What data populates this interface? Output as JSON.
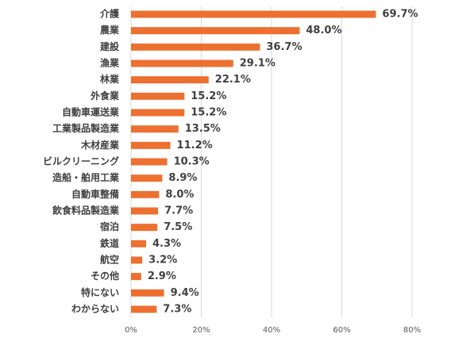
{
  "chart_data": {
    "type": "bar",
    "orientation": "horizontal",
    "categories": [
      "介護",
      "農業",
      "建設",
      "漁業",
      "林業",
      "外食業",
      "自動車運送業",
      "工業製品製造業",
      "木材産業",
      "ビルクリーニング",
      "造船・舶用工業",
      "自動車整備",
      "飲食料品製造業",
      "宿泊",
      "鉄道",
      "航空",
      "その他",
      "特にない",
      "わからない"
    ],
    "values": [
      69.7,
      48.0,
      36.7,
      29.1,
      22.1,
      15.2,
      15.2,
      13.5,
      11.2,
      10.3,
      8.9,
      8.0,
      7.7,
      7.5,
      4.3,
      3.2,
      2.9,
      9.4,
      7.3
    ],
    "value_labels": [
      "69.7%",
      "48.0%",
      "36.7%",
      "29.1%",
      "22.1%",
      "15.2%",
      "15.2%",
      "13.5%",
      "11.2%",
      "10.3%",
      "8.9%",
      "8.0%",
      "7.7%",
      "7.5%",
      "4.3%",
      "3.2%",
      "2.9%",
      "9.4%",
      "7.3%"
    ],
    "color": "#ed7031",
    "xlim": [
      0,
      80
    ],
    "xticks": [
      {
        "value": 0,
        "label": "0%"
      },
      {
        "value": 20,
        "label": "20%"
      },
      {
        "value": 40,
        "label": "40%"
      },
      {
        "value": 60,
        "label": "60%"
      },
      {
        "value": 80,
        "label": "80%"
      }
    ],
    "grid": true
  }
}
